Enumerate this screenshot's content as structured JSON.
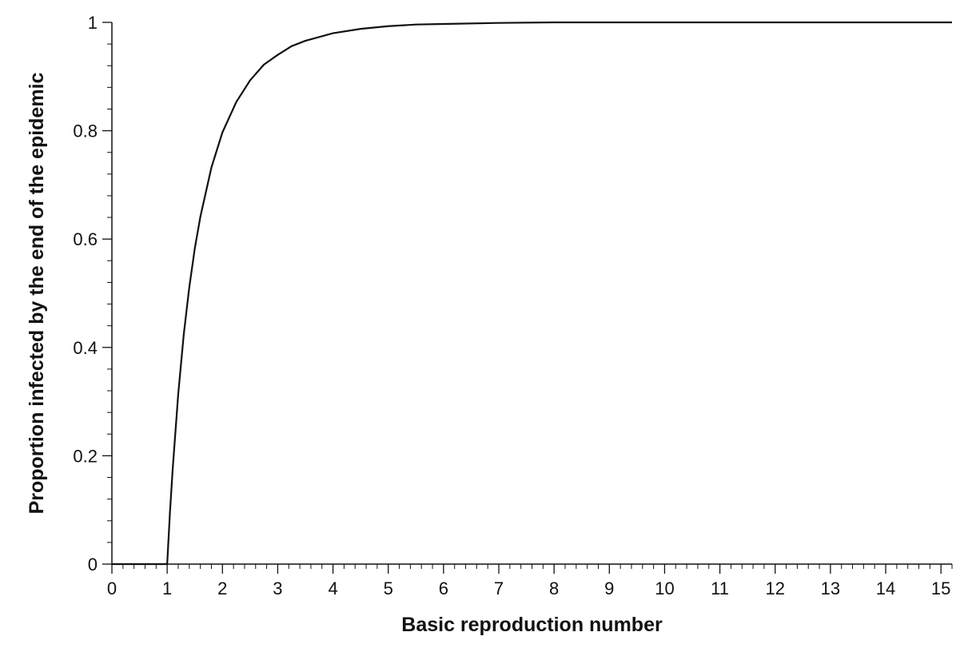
{
  "chart_data": {
    "type": "line",
    "xlabel": "Basic reproduction number",
    "ylabel": "Proportion infected by the end of the epidemic",
    "xlim": [
      0,
      15.2
    ],
    "ylim": [
      0,
      1
    ],
    "x_ticks": [
      0,
      1,
      2,
      3,
      4,
      5,
      6,
      7,
      8,
      9,
      10,
      11,
      12,
      13,
      14,
      15
    ],
    "x_tick_labels": [
      "0",
      "1",
      "2",
      "3",
      "4",
      "5",
      "6",
      "7",
      "8",
      "9",
      "10",
      "11",
      "12",
      "13",
      "14",
      "15"
    ],
    "y_ticks": [
      0,
      0.2,
      0.4,
      0.6,
      0.8,
      1
    ],
    "y_tick_labels": [
      "0",
      "0.2",
      "0.4",
      "0.6",
      "0.8",
      "1"
    ],
    "grid": false,
    "legend": "none",
    "line_color": "#111111",
    "series": [
      {
        "x": [
          0,
          1.0,
          1.05,
          1.1,
          1.2,
          1.3,
          1.4,
          1.5,
          1.6,
          1.8,
          2.0,
          2.25,
          2.5,
          2.75,
          3.0,
          3.25,
          3.5,
          4.0,
          4.5,
          5.0,
          5.5,
          6.0,
          7.0,
          8.0,
          9.0,
          10.0,
          12.0,
          15.2
        ],
        "y": [
          0,
          0.0,
          0.095,
          0.176,
          0.314,
          0.424,
          0.511,
          0.583,
          0.641,
          0.732,
          0.797,
          0.853,
          0.893,
          0.922,
          0.94,
          0.956,
          0.966,
          0.98,
          0.988,
          0.993,
          0.996,
          0.997,
          0.999,
          1.0,
          1.0,
          1.0,
          1.0,
          1.0
        ]
      }
    ]
  }
}
